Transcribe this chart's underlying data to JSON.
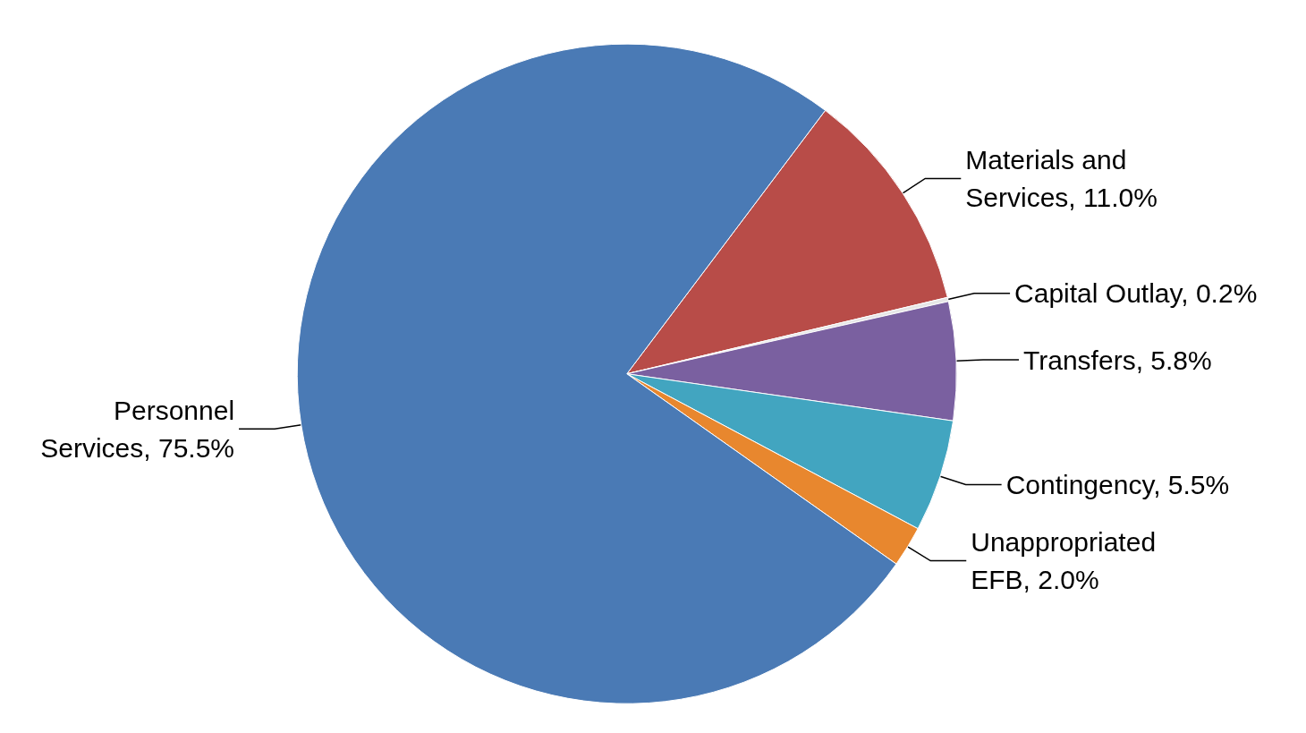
{
  "chart_data": {
    "type": "pie",
    "categories": [
      "Materials and Services",
      "Capital Outlay",
      "Transfers",
      "Contingency",
      "Unappropriated EFB",
      "Personnel Services"
    ],
    "values": [
      11.0,
      0.2,
      5.8,
      5.5,
      2.0,
      75.5
    ],
    "value_labels": [
      "11.0%",
      "0.2%",
      "5.8%",
      "5.5%",
      "2.0%",
      "75.5%"
    ],
    "colors": [
      "#b84c48",
      "#e6e6e6",
      "#7a60a0",
      "#42a5c0",
      "#e8872e",
      "#4a7ab5"
    ],
    "legend": false
  }
}
